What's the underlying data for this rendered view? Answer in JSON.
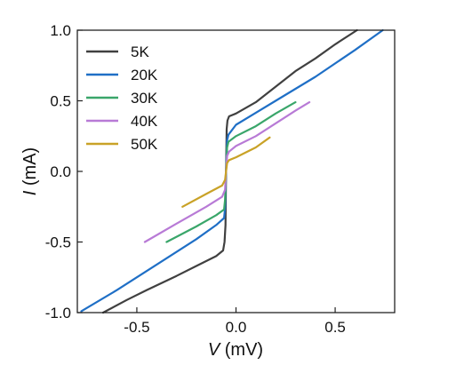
{
  "chart_data": {
    "type": "line",
    "xlabel": {
      "symbol": "V",
      "unit": " (mV)"
    },
    "ylabel": {
      "symbol": "I",
      "unit": " (mA)"
    },
    "xlim": [
      -0.8,
      0.8
    ],
    "ylim": [
      -1.0,
      1.0
    ],
    "x_ticks": [
      -0.5,
      0.0,
      0.5
    ],
    "x_tick_labels": [
      "-0.5",
      "0.0",
      "0.5"
    ],
    "y_ticks": [
      -1.0,
      -0.5,
      0.0,
      0.5,
      1.0
    ],
    "y_tick_labels": [
      "-1.0",
      "-0.5",
      "0.0",
      "0.5",
      "1.0"
    ],
    "grid": false,
    "legend_position": "top-left",
    "series": [
      {
        "name": "5K",
        "color": "#404040",
        "points": [
          [
            -0.67,
            -1.0
          ],
          [
            -0.55,
            -0.91
          ],
          [
            -0.45,
            -0.84
          ],
          [
            -0.3,
            -0.74
          ],
          [
            -0.2,
            -0.67
          ],
          [
            -0.1,
            -0.6
          ],
          [
            -0.065,
            -0.56
          ],
          [
            -0.058,
            -0.5
          ],
          [
            -0.053,
            -0.38
          ],
          [
            -0.05,
            0.0
          ],
          [
            -0.047,
            0.3
          ],
          [
            -0.043,
            0.36
          ],
          [
            -0.035,
            0.39
          ],
          [
            0.0,
            0.41
          ],
          [
            0.1,
            0.49
          ],
          [
            0.2,
            0.6
          ],
          [
            0.3,
            0.71
          ],
          [
            0.4,
            0.8
          ],
          [
            0.5,
            0.9
          ],
          [
            0.61,
            1.0
          ]
        ]
      },
      {
        "name": "20K",
        "color": "#1f6fc6",
        "points": [
          [
            -0.78,
            -0.99
          ],
          [
            -0.6,
            -0.84
          ],
          [
            -0.4,
            -0.66
          ],
          [
            -0.2,
            -0.48
          ],
          [
            -0.1,
            -0.38
          ],
          [
            -0.06,
            -0.33
          ],
          [
            -0.055,
            -0.26
          ],
          [
            -0.05,
            0.0
          ],
          [
            -0.045,
            0.22
          ],
          [
            -0.038,
            0.26
          ],
          [
            0.0,
            0.33
          ],
          [
            0.2,
            0.5
          ],
          [
            0.4,
            0.67
          ],
          [
            0.6,
            0.86
          ],
          [
            0.74,
            1.0
          ]
        ]
      },
      {
        "name": "30K",
        "color": "#3aa66a",
        "points": [
          [
            -0.35,
            -0.5
          ],
          [
            -0.2,
            -0.39
          ],
          [
            -0.1,
            -0.31
          ],
          [
            -0.06,
            -0.27
          ],
          [
            -0.055,
            -0.2
          ],
          [
            -0.05,
            0.0
          ],
          [
            -0.045,
            0.17
          ],
          [
            -0.038,
            0.21
          ],
          [
            0.0,
            0.25
          ],
          [
            0.1,
            0.32
          ],
          [
            0.2,
            0.41
          ],
          [
            0.3,
            0.49
          ]
        ]
      },
      {
        "name": "40K",
        "color": "#b87ad6",
        "points": [
          [
            -0.46,
            -0.5
          ],
          [
            -0.3,
            -0.37
          ],
          [
            -0.15,
            -0.25
          ],
          [
            -0.07,
            -0.18
          ],
          [
            -0.055,
            -0.13
          ],
          [
            -0.05,
            0.0
          ],
          [
            -0.045,
            0.11
          ],
          [
            -0.035,
            0.14
          ],
          [
            0.0,
            0.18
          ],
          [
            0.1,
            0.25
          ],
          [
            0.2,
            0.34
          ],
          [
            0.3,
            0.43
          ],
          [
            0.37,
            0.49
          ]
        ]
      },
      {
        "name": "50K",
        "color": "#c9a227",
        "points": [
          [
            -0.27,
            -0.25
          ],
          [
            -0.15,
            -0.16
          ],
          [
            -0.07,
            -0.1
          ],
          [
            -0.055,
            -0.06
          ],
          [
            -0.05,
            0.0
          ],
          [
            -0.045,
            0.06
          ],
          [
            -0.035,
            0.08
          ],
          [
            0.0,
            0.1
          ],
          [
            0.1,
            0.17
          ],
          [
            0.17,
            0.24
          ]
        ]
      }
    ]
  }
}
